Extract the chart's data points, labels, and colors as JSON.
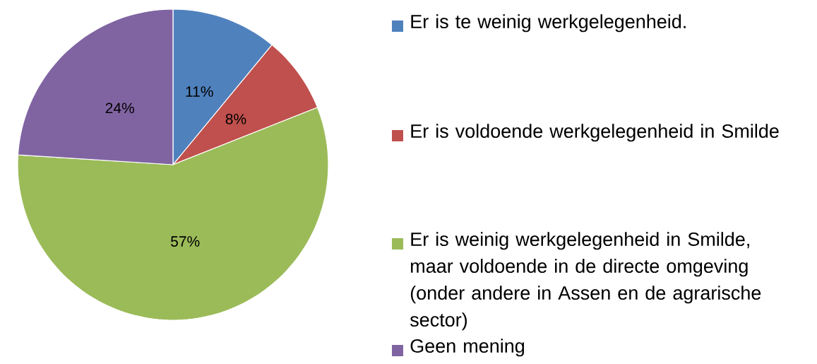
{
  "chart_data": {
    "type": "pie",
    "categories": [
      "Er is te weinig werkgelegenheid.",
      "Er is voldoende werkgelegenheid in Smilde",
      "Er is weinig werkgelegenheid in Smilde, maar voldoende in de directe omgeving (onder andere in Assen en de agrarische sector)",
      "Geen mening"
    ],
    "values": [
      11,
      8,
      57,
      24
    ],
    "colors": [
      "#4f81bd",
      "#c0504d",
      "#9bbb59",
      "#8064a2"
    ],
    "value_labels": [
      "11%",
      "8%",
      "57%",
      "24%"
    ],
    "legend": "right"
  }
}
